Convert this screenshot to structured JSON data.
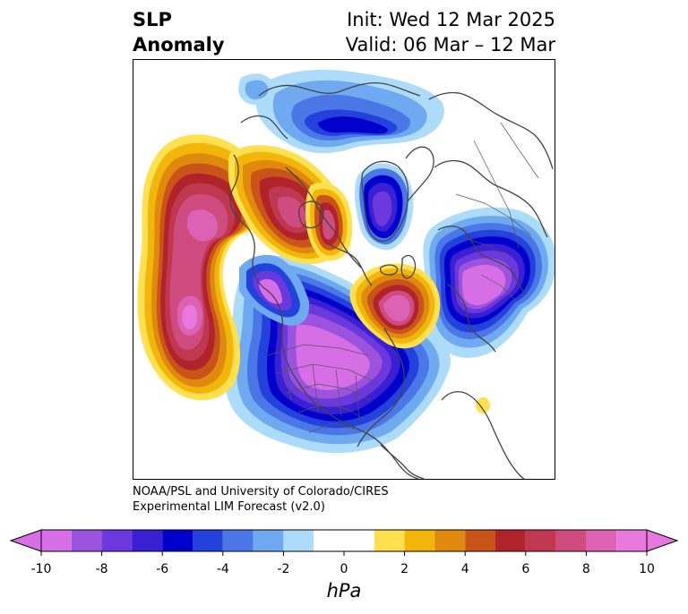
{
  "header": {
    "title_line1": "SLP",
    "title_line2": "Anomaly",
    "init_text": "Init: Wed 12 Mar 2025",
    "valid_text": "Valid: 06 Mar – 12 Mar"
  },
  "credit": {
    "line1": "NOAA/PSL and University of Colorado/CIRES",
    "line2": "Experimental LIM Forecast (v2.0)"
  },
  "colorbar": {
    "unit": "hPa",
    "min": -10,
    "max": 10,
    "tick_labels": [
      "-10",
      "-8",
      "-6",
      "-4",
      "-2",
      "0",
      "2",
      "4",
      "6",
      "8",
      "10"
    ],
    "tick_values": [
      -10,
      -8,
      -6,
      -4,
      -2,
      0,
      2,
      4,
      6,
      8,
      10
    ],
    "bin_edges": [
      -10,
      -9,
      -8,
      -7,
      -6,
      -5,
      -4,
      -3,
      -2,
      -1,
      1,
      2,
      3,
      4,
      5,
      6,
      7,
      8,
      9,
      10
    ],
    "bin_colors": [
      "#d66fe6",
      "#9b52dd",
      "#6a38dc",
      "#3a1fd3",
      "#0000cc",
      "#2342dc",
      "#4b76e6",
      "#6faaf0",
      "#acdcfa",
      "#ffffff",
      "#ffe04e",
      "#f2b60a",
      "#df8a0e",
      "#c8541a",
      "#b1232a",
      "#c0384f",
      "#cf4c80",
      "#dc62b4",
      "#e878dc"
    ],
    "under_color": "#d66fe6",
    "over_color": "#e878dc"
  },
  "map": {
    "projection": "north-polar-stereographic",
    "field": "sea-level pressure anomaly"
  }
}
